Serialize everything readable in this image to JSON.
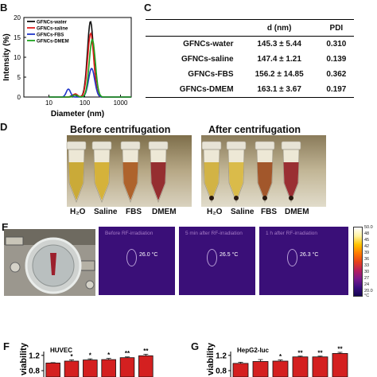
{
  "panel_labels": {
    "b": "B",
    "c": "C",
    "d": "D",
    "e": "E",
    "f": "F",
    "g": "G"
  },
  "chart_data": [
    {
      "type": "line",
      "xlabel": "Diameter (nm)",
      "ylabel": "Intensity (%)",
      "x_scale": "log",
      "x_ticks": [
        "10",
        "100",
        "1000"
      ],
      "ylim": [
        0,
        20
      ],
      "y_ticks": [
        "0",
        "5",
        "10",
        "15",
        "20"
      ],
      "legend_position": "top-left",
      "series": [
        {
          "name": "GFNCs-water",
          "color": "#111111",
          "peak_x": 145,
          "peak_y": 19.0,
          "sub_peak_x": 50,
          "sub_peak_y": 0.6
        },
        {
          "name": "GFNCs-saline",
          "color": "#e01b1b",
          "peak_x": 147,
          "peak_y": 16.0,
          "sub_peak_x": 55,
          "sub_peak_y": 0.8
        },
        {
          "name": "GFNCs-FBS",
          "color": "#2035c8",
          "peak_x": 156,
          "peak_y": 7.2,
          "sub_peak_x": 35,
          "sub_peak_y": 2.0
        },
        {
          "name": "GFNCs-DMEM",
          "color": "#1ea21e",
          "peak_x": 163,
          "peak_y": 14.5,
          "sub_peak_x": 55,
          "sub_peak_y": 0.5
        }
      ]
    },
    {
      "type": "table",
      "headers": [
        "",
        "d (nm)",
        "PDI"
      ],
      "rows": [
        [
          "GFNCs-water",
          "145.3 ± 5.44",
          "0.310"
        ],
        [
          "GFNCs-saline",
          "147.4 ± 1.21",
          "0.139"
        ],
        [
          "GFNCs-FBS",
          "156.2 ± 14.85",
          "0.362"
        ],
        [
          "GFNCs-DMEM",
          "163.1 ± 3.67",
          "0.197"
        ]
      ]
    },
    {
      "type": "bar",
      "title": "HUVEC",
      "ylabel": "viability",
      "y_ticks": [
        "0.8",
        "1.2"
      ],
      "ylim": [
        0.8,
        1.3
      ],
      "values": [
        1.0,
        1.05,
        1.08,
        1.09,
        1.14,
        1.19
      ],
      "errors": [
        0.01,
        0.03,
        0.03,
        0.03,
        0.02,
        0.04
      ],
      "significance": [
        "",
        "*",
        "*",
        "*",
        "**",
        "**"
      ],
      "bar_color": "#d42020"
    },
    {
      "type": "bar",
      "title": "HepG2-luc",
      "ylabel": "viability",
      "y_ticks": [
        "0.8",
        "1.2"
      ],
      "ylim": [
        0.8,
        1.3
      ],
      "values": [
        0.99,
        1.04,
        1.05,
        1.16,
        1.16,
        1.25
      ],
      "errors": [
        0.03,
        0.05,
        0.03,
        0.02,
        0.02,
        0.03
      ],
      "significance": [
        "",
        "",
        "*",
        "**",
        "**",
        "**"
      ],
      "bar_color": "#d42020"
    }
  ],
  "panel_d": {
    "before_title": "Before centrifugation",
    "after_title": "After centrifugation",
    "tube_labels": [
      "H₂O",
      "Saline",
      "FBS",
      "DMEM"
    ]
  },
  "panel_e": {
    "ir_titles": [
      "Before RF-irradiation",
      "5 min after RF-irradiation",
      "1 h after RF-irradiation"
    ],
    "ir_temps": [
      "26.0 °C",
      "26.5 °C",
      "26.3 °C"
    ],
    "colorbar_ticks": [
      "50.0",
      "48",
      "45",
      "42",
      "39",
      "36",
      "33",
      "30",
      "27",
      "24",
      "20.0"
    ],
    "colorbar_unit": "°C",
    "colorbar_colors": [
      "#ffffff",
      "#fff3a0",
      "#ffc400",
      "#ff7b00",
      "#e8421a",
      "#b81f5c",
      "#7a1a8c",
      "#3b0f80",
      "#150652"
    ]
  }
}
